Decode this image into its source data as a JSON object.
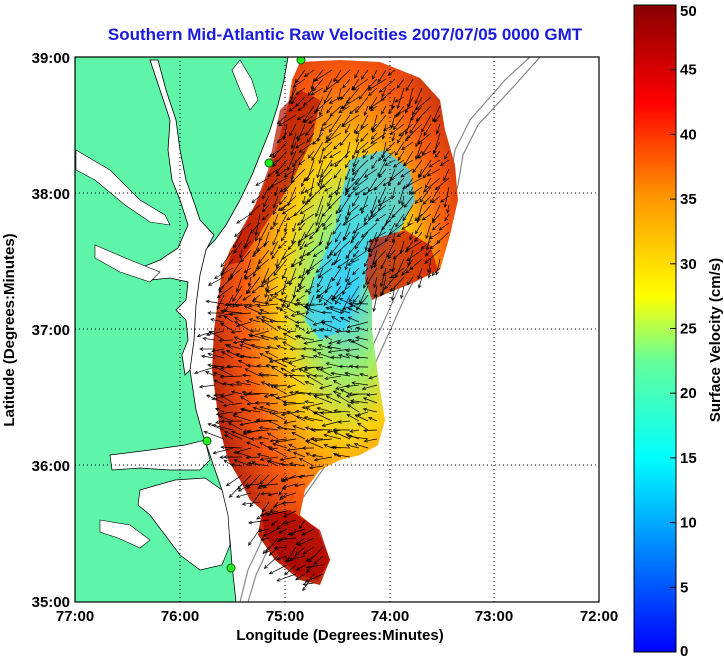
{
  "title": "Southern Mid-Atlantic Raw Velocities 2007/07/05 0000 GMT",
  "x_axis": {
    "label": "Longitude (Degrees:Minutes)",
    "ticks": [
      "77:00",
      "76:00",
      "75:00",
      "74:00",
      "73:00",
      "72:00"
    ]
  },
  "y_axis": {
    "label": "Latitude (Degrees:Minutes)",
    "ticks": [
      "39:00",
      "38:00",
      "37:00",
      "36:00",
      "35:00"
    ]
  },
  "colorbar": {
    "label": "Surface Velocity (cm/s)",
    "ticks": [
      "50",
      "45",
      "40",
      "35",
      "30",
      "25",
      "20",
      "15",
      "10",
      "5",
      "0"
    ],
    "range": [
      0,
      50
    ],
    "colormap": "jet"
  },
  "map": {
    "lon_range": [
      -77,
      -72
    ],
    "lat_range": [
      35,
      39
    ],
    "land_color": "#5ef5a8",
    "water_color": "#ffffff",
    "grid": "dotted",
    "vector_color": "#000000"
  }
}
